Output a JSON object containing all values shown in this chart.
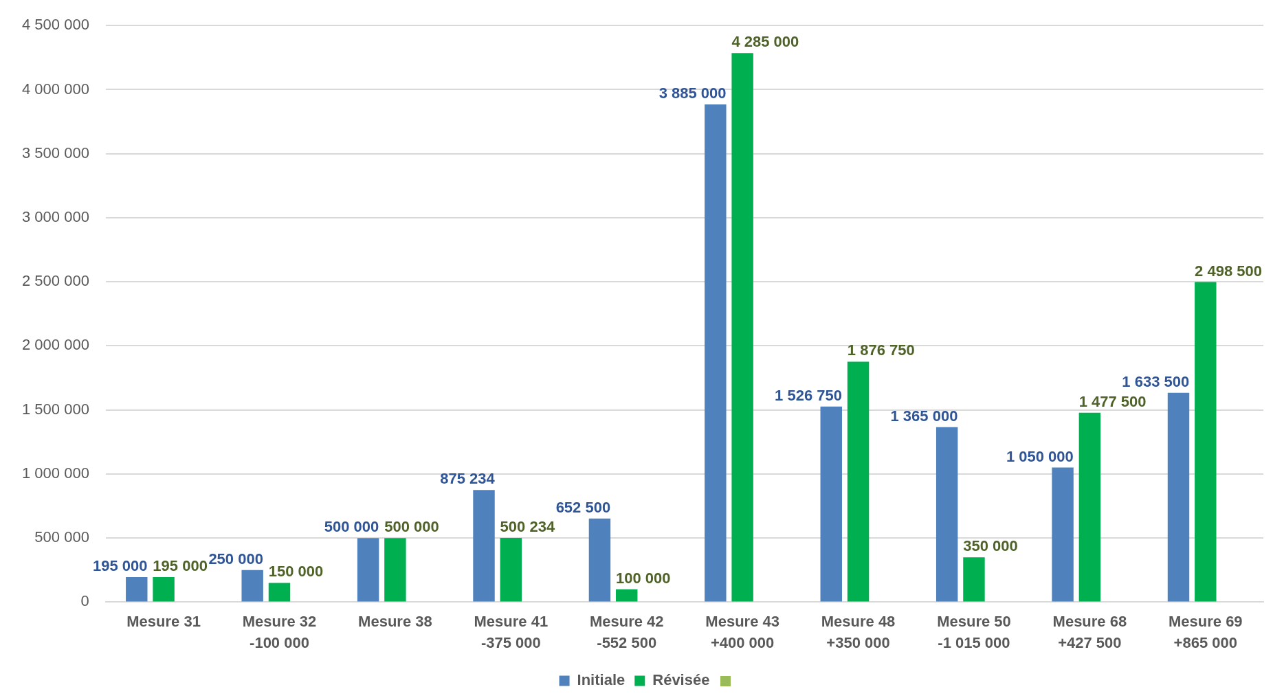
{
  "chart_data": {
    "type": "bar",
    "categories": [
      "Mesure 31",
      "Mesure 32\n-100 000",
      "Mesure 38",
      "Mesure 41\n-375 000",
      "Mesure 42\n-552 500",
      "Mesure 43\n+400 000",
      "Mesure 48\n+350 000",
      "Mesure 50\n-1 015 000",
      "Mesure 68\n+427 500",
      "Mesure 69\n+865 000"
    ],
    "series": [
      {
        "name": "Initiale",
        "color": "#4f81bd",
        "values": [
          195000,
          250000,
          500000,
          875234,
          652500,
          3885000,
          1526750,
          1365000,
          1050000,
          1633500
        ],
        "value_labels": [
          "195 000",
          "250 000",
          "500 000",
          "875 234",
          "652 500",
          "3 885 000",
          "1 526 750",
          "1 365 000",
          "1 050 000",
          "1 633 500"
        ]
      },
      {
        "name": "Révisée",
        "color": "#00b050",
        "values": [
          195000,
          150000,
          500000,
          500234,
          100000,
          4285000,
          1876750,
          350000,
          1477500,
          2498500
        ],
        "value_labels": [
          "195 000",
          "150 000",
          "500 000",
          "500 234",
          "100 000",
          "4 285 000",
          "1 876 750",
          "350 000",
          "1 477 500",
          "2 498 500"
        ]
      },
      {
        "color": "#9bbb59",
        "values": [
          null,
          null,
          null,
          null,
          null,
          null,
          null,
          null,
          null,
          null
        ]
      }
    ],
    "ylim": [
      0,
      4500000
    ],
    "yticks": [
      0,
      {
        "value": 500000,
        "label": "500 000"
      },
      {
        "value": 1000000,
        "label": "1 000 000"
      },
      {
        "value": 1500000,
        "label": "1 500 000"
      },
      {
        "value": 2000000,
        "label": "2 000 000"
      },
      {
        "value": 2500000,
        "label": "2 500 000"
      },
      {
        "value": 3000000,
        "label": "3 000 000"
      },
      {
        "value": 3500000,
        "label": "3 500 000"
      },
      {
        "value": 4000000,
        "label": "4 000 000"
      },
      {
        "value": 4500000,
        "label": "4 500 000"
      }
    ],
    "grid": "y",
    "legend": "bottom"
  }
}
